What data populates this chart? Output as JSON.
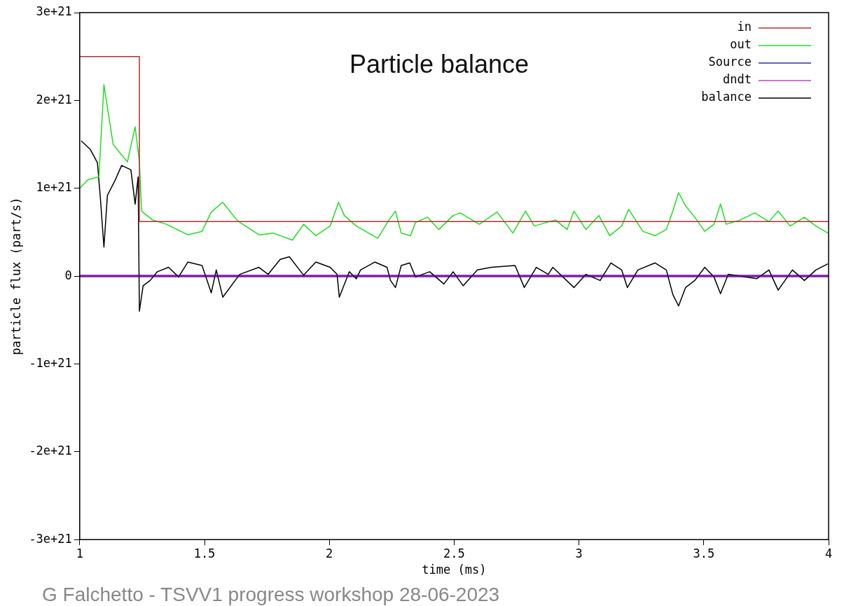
{
  "chart_data": {
    "type": "line",
    "title": "Particle balance",
    "xlabel": "time (ms)",
    "ylabel": "particle flux (part/s)",
    "annotations": [
      "G Falchetto - TSVV1 progress workshop 28-06-2023"
    ],
    "xlim": [
      1,
      4
    ],
    "xticks": [
      1,
      1.5,
      2,
      2.5,
      3,
      3.5,
      4
    ],
    "ylim": [
      -3e+21,
      3e+21
    ],
    "yticks": [
      {
        "value": -3e+21,
        "label": "-3e+21"
      },
      {
        "value": -2e+21,
        "label": "-2e+21"
      },
      {
        "value": -1e+21,
        "label": "-1e+21"
      },
      0,
      {
        "value": 1e+21,
        "label": "1e+21"
      },
      {
        "value": 2e+21,
        "label": "2e+21"
      },
      {
        "value": 3e+21,
        "label": "3e+21"
      }
    ],
    "grid": false,
    "legend": "top right",
    "marker": "none",
    "line_style": "solid",
    "series": [
      {
        "name": "in",
        "color": "#b03030",
        "x": [
          1,
          1.239,
          1.239,
          4
        ],
        "values": [
          2.5e+21,
          2.5e+21,
          6.2e+20,
          6.2e+20
        ]
      },
      {
        "name": "out",
        "color": "#22dd22",
        "x": [
          1.0,
          1.034,
          1.077,
          1.097,
          1.134,
          1.162,
          1.191,
          1.222,
          1.239,
          1.248,
          1.291,
          1.348,
          1.433,
          1.49,
          1.527,
          1.573,
          1.632,
          1.718,
          1.775,
          1.852,
          1.897,
          1.946,
          2.003,
          2.037,
          2.06,
          2.108,
          2.194,
          2.239,
          2.265,
          2.288,
          2.325,
          2.345,
          2.393,
          2.439,
          2.496,
          2.524,
          2.601,
          2.672,
          2.735,
          2.786,
          2.821,
          2.906,
          2.952,
          2.98,
          3.028,
          3.08,
          3.123,
          3.171,
          3.199,
          3.256,
          3.305,
          3.35,
          3.376,
          3.399,
          3.427,
          3.464,
          3.504,
          3.541,
          3.567,
          3.59,
          3.647,
          3.704,
          3.761,
          3.798,
          3.846,
          3.903,
          3.949,
          3.997
        ],
        "values": [
          1e+21,
          1.1e+21,
          1.13e+21,
          2.18e+21,
          1.5e+21,
          1.4e+21,
          1.3e+21,
          1.7e+21,
          1.3e+21,
          7.4e+20,
          6.4e+20,
          5.9e+20,
          4.7e+20,
          5.1e+20,
          7.3e+20,
          8.4e+20,
          6.3e+20,
          4.7e+20,
          4.9e+20,
          4.1e+20,
          5.9e+20,
          4.6e+20,
          5.7e+20,
          8.4e+20,
          6.9e+20,
          5.7e+20,
          4.3e+20,
          6.4e+20,
          7.4e+20,
          4.9e+20,
          4.6e+20,
          6.1e+20,
          6.7e+20,
          5.3e+20,
          6.9e+20,
          7.2e+20,
          5.9e+20,
          7.3e+20,
          4.9e+20,
          7.4e+20,
          5.7e+20,
          6.4e+20,
          5.3e+20,
          7.4e+20,
          5.3e+20,
          6.9e+20,
          4.6e+20,
          5.7e+20,
          7.6e+20,
          5.1e+20,
          4.6e+20,
          5.3e+20,
          7.4e+20,
          9.5e+20,
          8e+20,
          6.7e+20,
          5.1e+20,
          5.9e+20,
          8.2e+20,
          5.9e+20,
          6.4e+20,
          7.2e+20,
          6.2e+20,
          7.4e+20,
          5.7e+20,
          6.7e+20,
          5.7e+20,
          4.9e+20
        ]
      },
      {
        "name": "Source",
        "color": "#3030a0",
        "x": [
          1,
          4
        ],
        "values": [
          0,
          0
        ]
      },
      {
        "name": "dndt",
        "color": "#c040c0",
        "x": [
          1,
          4
        ],
        "values": [
          0,
          0
        ]
      },
      {
        "name": "balance",
        "color": "#000000",
        "x": [
          1.006,
          1.043,
          1.071,
          1.083,
          1.097,
          1.111,
          1.14,
          1.168,
          1.205,
          1.222,
          1.234,
          1.239,
          1.254,
          1.282,
          1.311,
          1.356,
          1.396,
          1.433,
          1.49,
          1.527,
          1.547,
          1.573,
          1.641,
          1.718,
          1.755,
          1.803,
          1.84,
          1.897,
          1.946,
          2.003,
          2.031,
          2.04,
          2.08,
          2.108,
          2.125,
          2.182,
          2.231,
          2.245,
          2.265,
          2.288,
          2.322,
          2.345,
          2.402,
          2.459,
          2.496,
          2.536,
          2.593,
          2.65,
          2.744,
          2.781,
          2.829,
          2.877,
          2.895,
          2.98,
          3.028,
          3.085,
          3.128,
          3.171,
          3.194,
          3.236,
          3.305,
          3.35,
          3.376,
          3.399,
          3.427,
          3.464,
          3.504,
          3.541,
          3.567,
          3.598,
          3.712,
          3.761,
          3.798,
          3.855,
          3.903,
          3.949,
          3.997
        ],
        "values": [
          1.54e+21,
          1.44e+21,
          1.29e+21,
          8.8e+20,
          3.3e+20,
          9.2e+20,
          1.08e+21,
          1.26e+21,
          1.21e+21,
          8.2e+20,
          1.13e+21,
          -4e+20,
          -1.1e+20,
          -5e+19,
          5e+19,
          1e+20,
          -1e+19,
          1.6e+20,
          1.2e+20,
          -1.9e+20,
          7e+19,
          -2.4e+20,
          2e+19,
          1e+20,
          2e+19,
          1.9e+20,
          2.2e+20,
          1e+19,
          1.6e+20,
          1e+20,
          2e+19,
          -2.4e+20,
          5e+19,
          -3e+19,
          7e+19,
          1.6e+20,
          1e+20,
          -5e+19,
          -1.3e+20,
          1.2e+20,
          1.5e+20,
          -1e+19,
          5e+19,
          -9e+19,
          5e+19,
          -1.1e+20,
          7e+19,
          1e+20,
          1.2e+20,
          -1.3e+20,
          1e+20,
          2e+19,
          1e+20,
          -1.3e+20,
          2e+19,
          -5e+19,
          1.5e+20,
          7e+19,
          -1.3e+20,
          7e+19,
          1.5e+20,
          7e+19,
          -2.1e+20,
          -3.4e+20,
          -1.3e+20,
          -5e+19,
          1e+20,
          -1e+19,
          -2e+20,
          2e+19,
          -3e+19,
          7e+19,
          -1.6e+20,
          7e+19,
          -5e+19,
          7e+19,
          1.4e+20
        ]
      }
    ]
  }
}
